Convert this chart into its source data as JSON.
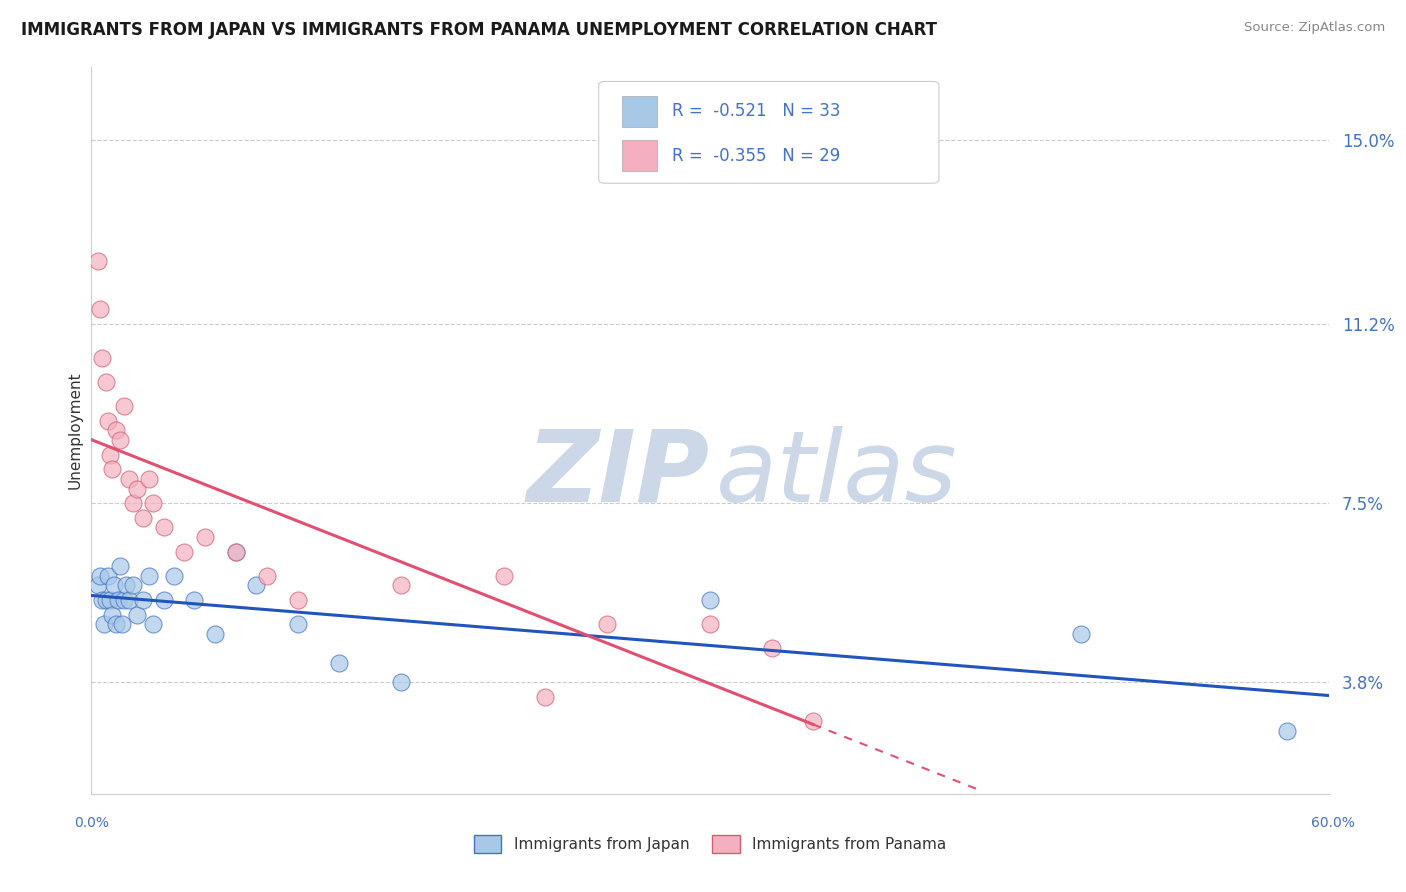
{
  "title": "IMMIGRANTS FROM JAPAN VS IMMIGRANTS FROM PANAMA UNEMPLOYMENT CORRELATION CHART",
  "source": "Source: ZipAtlas.com",
  "ylabel": "Unemployment",
  "y_ticks": [
    3.8,
    7.5,
    11.2,
    15.0
  ],
  "y_tick_labels": [
    "3.8%",
    "7.5%",
    "11.2%",
    "15.0%"
  ],
  "x_min": 0.0,
  "x_max": 60.0,
  "y_min": 1.5,
  "y_max": 16.5,
  "japan_fill": "#a8c8e8",
  "japan_edge": "#4472c4",
  "japan_line": "#2255bb",
  "panama_fill": "#f4b0c0",
  "panama_edge": "#d06070",
  "panama_line": "#e05070",
  "R_japan": -0.521,
  "N_japan": 33,
  "R_panama": -0.355,
  "N_panama": 29,
  "japan_x": [
    0.3,
    0.4,
    0.5,
    0.6,
    0.7,
    0.8,
    0.9,
    1.0,
    1.1,
    1.2,
    1.3,
    1.4,
    1.5,
    1.6,
    1.7,
    1.8,
    2.0,
    2.2,
    2.5,
    2.8,
    3.0,
    3.5,
    4.0,
    5.0,
    6.0,
    7.0,
    8.0,
    10.0,
    12.0,
    15.0,
    30.0,
    48.0,
    58.0
  ],
  "japan_y": [
    5.8,
    6.0,
    5.5,
    5.0,
    5.5,
    6.0,
    5.5,
    5.2,
    5.8,
    5.0,
    5.5,
    6.2,
    5.0,
    5.5,
    5.8,
    5.5,
    5.8,
    5.2,
    5.5,
    6.0,
    5.0,
    5.5,
    6.0,
    5.5,
    4.8,
    6.5,
    5.8,
    5.0,
    4.2,
    3.8,
    5.5,
    4.8,
    2.8
  ],
  "panama_x": [
    0.3,
    0.4,
    0.5,
    0.7,
    0.8,
    0.9,
    1.0,
    1.2,
    1.4,
    1.6,
    1.8,
    2.0,
    2.2,
    2.5,
    2.8,
    3.0,
    3.5,
    4.5,
    5.5,
    7.0,
    8.5,
    10.0,
    15.0,
    20.0,
    22.0,
    25.0,
    30.0,
    33.0,
    35.0
  ],
  "panama_y": [
    12.5,
    11.5,
    10.5,
    10.0,
    9.2,
    8.5,
    8.2,
    9.0,
    8.8,
    9.5,
    8.0,
    7.5,
    7.8,
    7.2,
    8.0,
    7.5,
    7.0,
    6.5,
    6.8,
    6.5,
    6.0,
    5.5,
    5.8,
    6.0,
    3.5,
    5.0,
    5.0,
    4.5,
    3.0
  ],
  "watermark_zip": "ZIP",
  "watermark_atlas": "atlas",
  "watermark_color": "#ccd8e8",
  "legend_bottom_japan": "Immigrants from Japan",
  "legend_bottom_panama": "Immigrants from Panama",
  "grid_color": "#cccccc",
  "tick_label_color": "#4472c4",
  "bottom_label_color": "#4472c4"
}
